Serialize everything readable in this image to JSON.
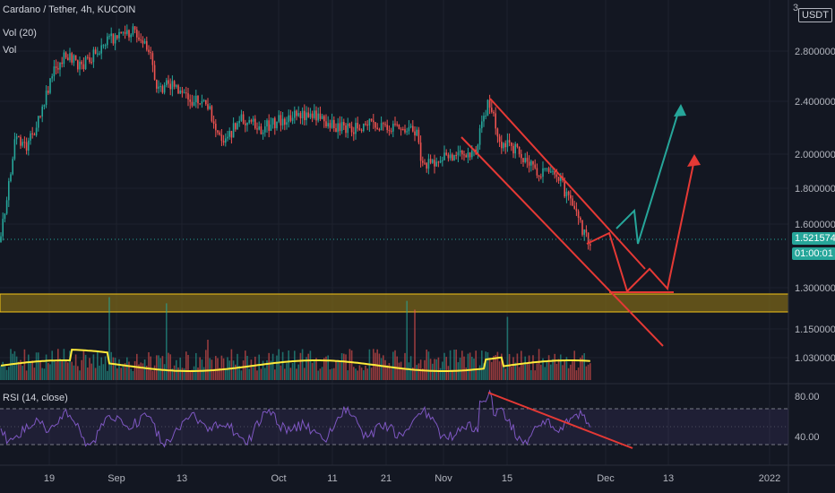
{
  "header": {
    "symbol": "Cardano / Tether, 4h, KUCOIN",
    "volume_indicator": "Vol (20)",
    "volume_label": "Vol"
  },
  "price_axis": {
    "currency_badge": "USDT",
    "top_label": "3.",
    "labels": [
      "2.800000",
      "2.400000",
      "2.000000",
      "1.800000",
      "1.600000",
      "1.300000",
      "1.150000",
      "1.030000"
    ],
    "current_price": "1.521574",
    "countdown": "01:00:01"
  },
  "rsi": {
    "title": "RSI (14, close)",
    "labels": [
      "80.00",
      "40.00"
    ]
  },
  "time_axis": {
    "labels": [
      "19",
      "Sep",
      "13",
      "Oct",
      "11",
      "21",
      "Nov",
      "15",
      "Dec",
      "13",
      "2022"
    ]
  },
  "colors": {
    "background": "#131722",
    "up": "#26a69a",
    "down": "#ef5350",
    "zone": "#8a6d1a",
    "zone_border": "#f5c518",
    "volume_ma": "#ffeb3b",
    "rsi_line": "#7e57c2",
    "drawing_red": "#e53935",
    "drawing_green": "#26a69a",
    "price_badge": "#26a69a"
  }
}
